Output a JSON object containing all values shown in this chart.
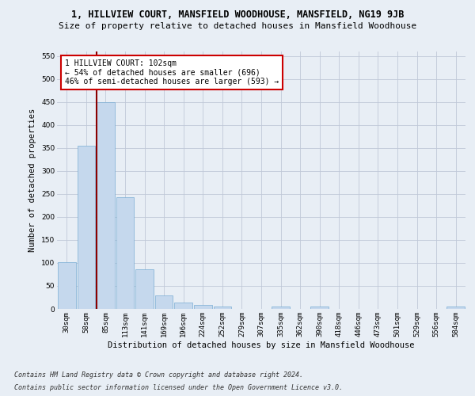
{
  "title": "1, HILLVIEW COURT, MANSFIELD WOODHOUSE, MANSFIELD, NG19 9JB",
  "subtitle": "Size of property relative to detached houses in Mansfield Woodhouse",
  "xlabel": "Distribution of detached houses by size in Mansfield Woodhouse",
  "ylabel": "Number of detached properties",
  "bar_labels": [
    "30sqm",
    "58sqm",
    "85sqm",
    "113sqm",
    "141sqm",
    "169sqm",
    "196sqm",
    "224sqm",
    "252sqm",
    "279sqm",
    "307sqm",
    "335sqm",
    "362sqm",
    "390sqm",
    "418sqm",
    "446sqm",
    "473sqm",
    "501sqm",
    "529sqm",
    "556sqm",
    "584sqm"
  ],
  "bar_values": [
    102,
    355,
    449,
    243,
    87,
    30,
    13,
    9,
    5,
    0,
    0,
    5,
    0,
    5,
    0,
    0,
    0,
    0,
    0,
    0,
    5
  ],
  "bar_color": "#c5d8ed",
  "bar_edge_color": "#7aadd4",
  "grid_color": "#c0c8d8",
  "background_color": "#e8eef5",
  "vline_color": "#8b0000",
  "annotation_text": "1 HILLVIEW COURT: 102sqm\n← 54% of detached houses are smaller (696)\n46% of semi-detached houses are larger (593) →",
  "annotation_box_color": "white",
  "annotation_box_edge": "#cc0000",
  "ylim": [
    0,
    560
  ],
  "yticks": [
    0,
    50,
    100,
    150,
    200,
    250,
    300,
    350,
    400,
    450,
    500,
    550
  ],
  "footer1": "Contains HM Land Registry data © Crown copyright and database right 2024.",
  "footer2": "Contains public sector information licensed under the Open Government Licence v3.0.",
  "title_fontsize": 8.5,
  "subtitle_fontsize": 8,
  "xlabel_fontsize": 7.5,
  "ylabel_fontsize": 7.5,
  "tick_fontsize": 6.5,
  "footer_fontsize": 6,
  "ann_fontsize": 7
}
